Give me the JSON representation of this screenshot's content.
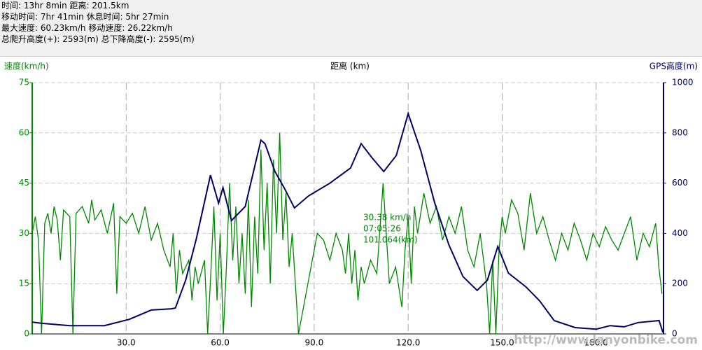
{
  "header": {
    "lines": [
      "时间: 13hr 8min  距离: 201.5km",
      "移动时间: 7hr 41min  休息时间: 5hr 27min",
      "最大速度: 60.23km/h  移动速度: 26.22km/h",
      "总爬升高度(+): 2593(m)  总下降高度(-): 2595(m)"
    ]
  },
  "chart_data": {
    "type": "line",
    "y_label": "速度(km/h)",
    "x_label": "距离 (km)",
    "y2_label": "GPS高度(m)",
    "xlim": [
      0,
      201.5
    ],
    "xticks": [
      {
        "value": 30,
        "label": "30.0"
      },
      {
        "value": 60,
        "label": "60.0"
      },
      {
        "value": 90,
        "label": "90.0"
      },
      {
        "value": 120,
        "label": "120.0"
      },
      {
        "value": 150,
        "label": "150.0"
      },
      {
        "value": 180,
        "label": "180.0"
      }
    ],
    "ylim": [
      0,
      75
    ],
    "yticks": [
      0,
      15,
      30,
      45,
      60,
      75
    ],
    "y2lim": [
      0,
      1000
    ],
    "y2ticks": [
      0,
      200,
      400,
      600,
      800,
      1000
    ],
    "grid": true,
    "annotations": [
      "30.38 km/h",
      "07:05:26",
      "101.064(km)"
    ],
    "watermark": "http://www.lanyonbike.com",
    "series": [
      {
        "name": "速度",
        "color": "#008800",
        "x": [
          0,
          1,
          2,
          3,
          4,
          5,
          6,
          7,
          8,
          9,
          10,
          12,
          13,
          14,
          16,
          18,
          19,
          20,
          22,
          24,
          26,
          27,
          28,
          30,
          32,
          34,
          36,
          38,
          40,
          42,
          44,
          45,
          46,
          47,
          48,
          50,
          51,
          52,
          53,
          55,
          56,
          57,
          58,
          59,
          60,
          61,
          62,
          63,
          64,
          65,
          66,
          67,
          68,
          69,
          70,
          71,
          72,
          73,
          74,
          75,
          76,
          77,
          78,
          79,
          80,
          81,
          82,
          83,
          84,
          85,
          88,
          91,
          93,
          95,
          97,
          99,
          100,
          101,
          102,
          103,
          104,
          105,
          106,
          108,
          110,
          112,
          114,
          116,
          118,
          119,
          120,
          121,
          122,
          123,
          125,
          127,
          129,
          131,
          133,
          135,
          137,
          139,
          141,
          143,
          145,
          146,
          147,
          148,
          149,
          150,
          151,
          153,
          155,
          157,
          159,
          161,
          163,
          165,
          167,
          169,
          171,
          173,
          175,
          177,
          179,
          181,
          183,
          185,
          187,
          189,
          191,
          193,
          195,
          197,
          199,
          200,
          201
        ],
        "values": [
          30,
          35,
          28,
          0,
          33,
          36,
          30,
          38,
          34,
          22,
          37,
          35,
          0,
          36,
          38,
          33,
          40,
          34,
          37,
          30,
          39,
          12,
          35,
          33,
          36,
          30,
          38,
          28,
          33,
          25,
          20,
          30,
          12,
          25,
          18,
          22,
          10,
          20,
          15,
          22,
          0,
          18,
          38,
          10,
          30,
          0,
          20,
          45,
          22,
          38,
          15,
          30,
          12,
          40,
          8,
          35,
          18,
          55,
          25,
          45,
          15,
          52,
          30,
          60,
          28,
          42,
          20,
          30,
          15,
          0,
          15,
          30,
          28,
          22,
          30,
          25,
          18,
          30,
          15,
          25,
          10,
          20,
          15,
          22,
          18,
          45,
          15,
          20,
          8,
          25,
          35,
          15,
          38,
          30,
          42,
          33,
          38,
          28,
          35,
          30,
          38,
          25,
          20,
          30,
          15,
          0,
          22,
          0,
          25,
          35,
          30,
          40,
          36,
          25,
          42,
          30,
          35,
          28,
          22,
          30,
          25,
          33,
          28,
          22,
          30,
          26,
          32,
          28,
          25,
          30,
          35,
          22,
          30,
          26,
          33,
          20,
          12
        ]
      },
      {
        "name": "GPS高度",
        "color": "#000066",
        "axis": "y2",
        "x": [
          0,
          3.1,
          12,
          23,
          31,
          38,
          44.5,
          45.7,
          49,
          52.4,
          56.9,
          59.5,
          60.9,
          63.6,
          68,
          73,
          74.3,
          77.5,
          80.4,
          83.7,
          88.2,
          94.9,
          101.6,
          105,
          108.4,
          112.2,
          116.2,
          120,
          124,
          128.5,
          133,
          137.5,
          142,
          145.3,
          148.6,
          152,
          157.6,
          162,
          166.6,
          173.3,
          180,
          184.5,
          188.9,
          193.4,
          200.1,
          201.3
        ],
        "values": [
          47,
          42,
          33,
          33,
          58,
          95,
          100,
          103,
          214,
          380,
          632,
          520,
          582,
          451,
          507,
          771,
          757,
          646,
          582,
          501,
          549,
          599,
          660,
          757,
          702,
          646,
          710,
          877,
          730,
          520,
          354,
          228,
          173,
          214,
          348,
          242,
          187,
          131,
          53,
          25,
          19,
          33,
          28,
          45,
          53,
          6
        ]
      }
    ]
  }
}
